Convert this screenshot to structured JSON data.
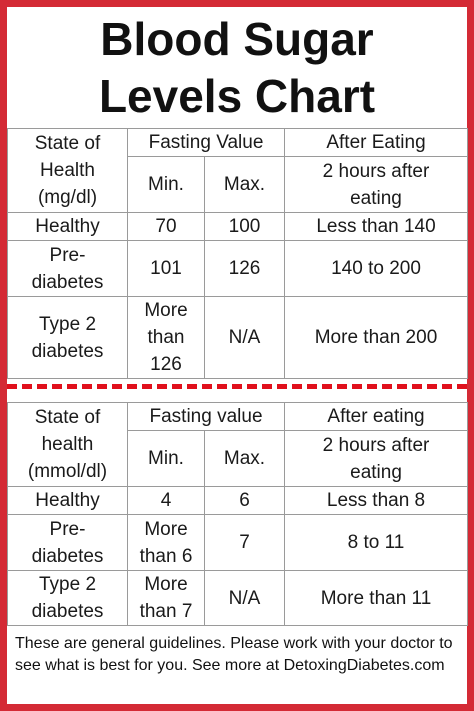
{
  "title_lines": [
    "Blood Sugar",
    "Levels Chart"
  ],
  "table1": {
    "header": [
      "State of\nHealth\n(mg/dl)",
      "Fasting Value",
      "After Eating"
    ],
    "subheader": [
      "Min.",
      "Max.",
      "2 hours after\neating"
    ],
    "rows": [
      [
        "Healthy",
        "70",
        "100",
        "Less than 140"
      ],
      [
        "Pre-\ndiabetes",
        "101",
        "126",
        "140 to 200"
      ],
      [
        "Type 2\ndiabetes",
        "More\nthan\n126",
        "N/A",
        "More than 200"
      ]
    ]
  },
  "table2": {
    "header": [
      "State of\nhealth\n(mmol/dl)",
      "Fasting value",
      "After eating"
    ],
    "subheader": [
      "Min.",
      "Max.",
      "2 hours after\neating"
    ],
    "rows": [
      [
        "Healthy",
        "4",
        "6",
        "Less than 8"
      ],
      [
        "Pre-\ndiabetes",
        "More\nthan 6",
        "7",
        "8 to 11"
      ],
      [
        "Type 2\ndiabetes",
        "More\nthan 7",
        "N/A",
        "More than 11"
      ]
    ]
  },
  "footer": "These are general guidelines. Please work with your doctor to see what is best for you.  See more at DetoxingDiabetes.com"
}
